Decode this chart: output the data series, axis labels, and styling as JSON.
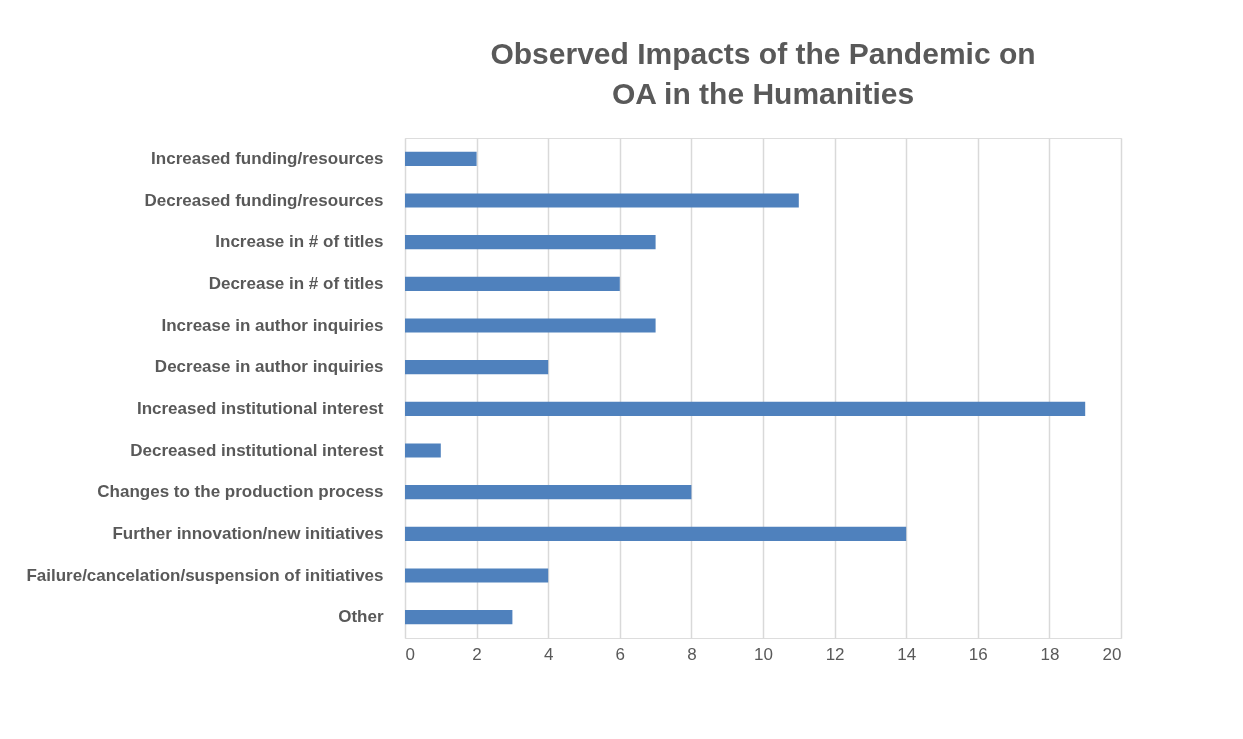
{
  "chart_data": {
    "type": "bar",
    "orientation": "horizontal",
    "title": "Observed Impacts of the Pandemic on\nOA in the Humanities",
    "categories": [
      "Increased funding/resources",
      "Decreased funding/resources",
      "Increase in # of titles",
      "Decrease in # of titles",
      "Increase in author inquiries",
      "Decrease in author inquiries",
      "Increased institutional interest",
      "Decreased institutional interest",
      "Changes to the production process",
      "Further innovation/new initiatives",
      "Failure/cancelation/suspension of initiatives",
      "Other"
    ],
    "values": [
      2,
      11,
      7,
      6,
      7,
      4,
      19,
      1,
      8,
      14,
      4,
      3
    ],
    "color": "#4f81bd",
    "xlim": [
      0,
      20
    ],
    "xticks": [
      0,
      2,
      4,
      6,
      8,
      10,
      12,
      14,
      16,
      18,
      20
    ],
    "grid": "x"
  }
}
